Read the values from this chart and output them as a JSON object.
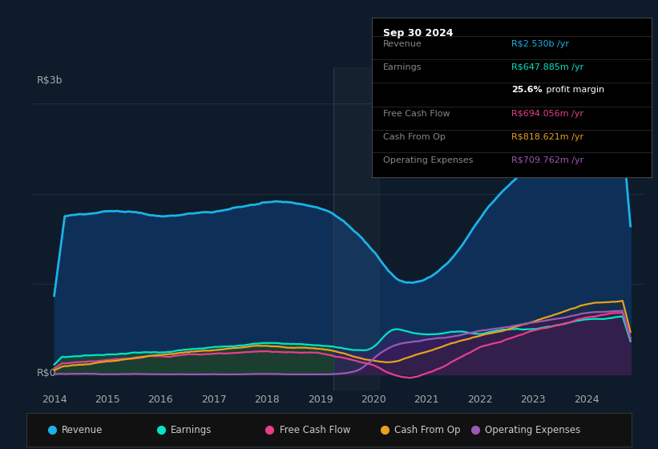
{
  "bg_color": "#0d1b2a",
  "plot_bg_color": "#0d1b2a",
  "ylabel_top": "R$3b",
  "ylabel_bottom": "R$0",
  "x_ticks": [
    2014,
    2015,
    2016,
    2017,
    2018,
    2019,
    2020,
    2021,
    2022,
    2023,
    2024
  ],
  "revenue_color": "#1ab3e8",
  "earnings_color": "#00e5c5",
  "fcf_color": "#e83e8c",
  "cashfromop_color": "#e8a020",
  "opex_color": "#9b59b6",
  "info_box": {
    "title": "Sep 30 2024",
    "rows": [
      {
        "label": "Revenue",
        "value": "R$2.530b /yr",
        "value_color": "#1ab3e8"
      },
      {
        "label": "Earnings",
        "value": "R$647.885m /yr",
        "value_color": "#00e5c5"
      },
      {
        "label": "",
        "value": "25.6% profit margin",
        "value_color": "#ffffff",
        "bold": "25.6%"
      },
      {
        "label": "Free Cash Flow",
        "value": "R$694.056m /yr",
        "value_color": "#e83e8c"
      },
      {
        "label": "Cash From Op",
        "value": "R$818.621m /yr",
        "value_color": "#e8a020"
      },
      {
        "label": "Operating Expenses",
        "value": "R$709.762m /yr",
        "value_color": "#9b59b6"
      }
    ]
  },
  "legend_items": [
    {
      "label": "Revenue",
      "color": "#1ab3e8"
    },
    {
      "label": "Earnings",
      "color": "#00e5c5"
    },
    {
      "label": "Free Cash Flow",
      "color": "#e83e8c"
    },
    {
      "label": "Cash From Op",
      "color": "#e8a020"
    },
    {
      "label": "Operating Expenses",
      "color": "#9b59b6"
    }
  ]
}
